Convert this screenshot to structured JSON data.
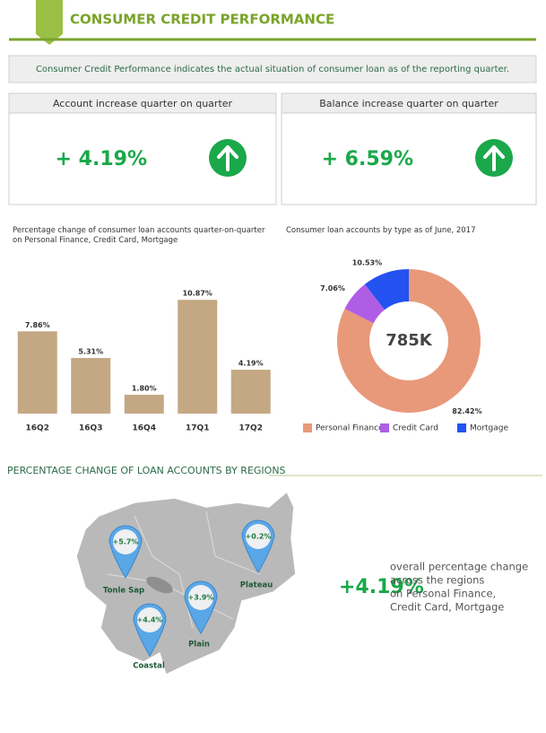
{
  "header": {
    "title": "CONSUMER CREDIT PERFORMANCE"
  },
  "summary": "Consumer Credit Performance indicates the actual situation of consumer loan as of the reporting quarter.",
  "kpis": [
    {
      "title": "Account increase quarter on quarter",
      "value": "+ 4.19%"
    },
    {
      "title": "Balance increase quarter on quarter",
      "value": "+ 6.59%"
    }
  ],
  "chart_data": [
    {
      "type": "bar",
      "title": "Percentage change of consumer loan accounts quarter-on-quarter on Personal Finance, Credit Card, Mortgage",
      "categories": [
        "16Q2",
        "16Q3",
        "16Q4",
        "17Q1",
        "17Q2"
      ],
      "values": [
        7.86,
        5.31,
        1.8,
        10.87,
        4.19
      ],
      "value_labels": [
        "7.86%",
        "5.31%",
        "1.80%",
        "10.87%",
        "4.19%"
      ],
      "color": "#c4a883",
      "ylim": [
        0,
        12
      ]
    },
    {
      "type": "pie",
      "title": "Consumer loan accounts by type as of June, 2017",
      "categories": [
        "Personal Finance",
        "Credit Card",
        "Mortgage"
      ],
      "values": [
        82.42,
        7.06,
        10.53
      ],
      "value_labels": [
        "82.42%",
        "7.06%",
        "10.53%"
      ],
      "colors": [
        "#e8997a",
        "#b05de6",
        "#2352f0"
      ],
      "center_label": "785K"
    }
  ],
  "map": {
    "title": "PERCENTAGE CHANGE OF LOAN ACCOUNTS BY REGIONS",
    "regions": [
      {
        "name": "Tonle Sap",
        "change": "+5.7%"
      },
      {
        "name": "Plateau",
        "change": "+0.2%"
      },
      {
        "name": "Plain",
        "change": "+3.9%"
      },
      {
        "name": "Coastal",
        "change": "+4.4%"
      }
    ],
    "overall": "+4.19%",
    "note": [
      "overall percentage change",
      "across the regions",
      "on Personal Finance,",
      "Credit Card, Mortgage"
    ]
  }
}
